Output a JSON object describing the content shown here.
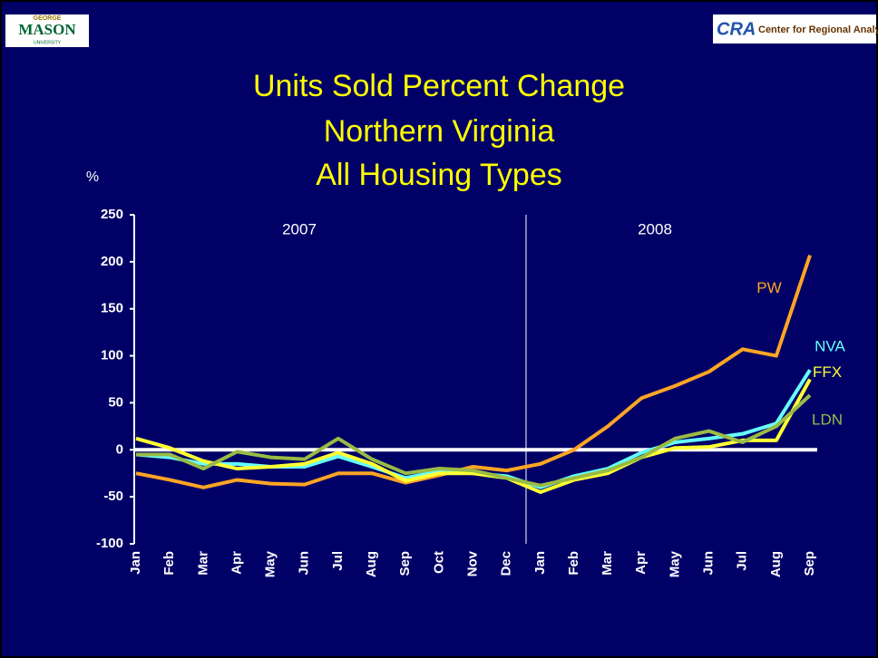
{
  "header": {
    "left_logo": [
      "GEORGE",
      "MASON",
      "UNIVERSITY"
    ],
    "right_logo": [
      "CRA",
      "Center for Regional Analysis"
    ]
  },
  "chart_data": {
    "type": "line",
    "title": [
      "Units Sold Percent Change",
      "Northern Virginia",
      "All Housing Types"
    ],
    "ylabel": "%",
    "annotations": [
      "2007",
      "2008"
    ],
    "categories": [
      "Jan",
      "Feb",
      "Mar",
      "Apr",
      "May",
      "Jun",
      "Jul",
      "Aug",
      "Sep",
      "Oct",
      "Nov",
      "Dec",
      "Jan",
      "Feb",
      "Mar",
      "Apr",
      "May",
      "Jun",
      "Jul",
      "Aug",
      "Sep"
    ],
    "ylim": [
      -100,
      250
    ],
    "yticks": [
      -100,
      -50,
      0,
      50,
      100,
      150,
      200,
      250
    ],
    "series": [
      {
        "name": "PW",
        "color": "#ffa524",
        "values": [
          -25,
          -32,
          -40,
          -32,
          -36,
          -37,
          -25,
          -25,
          -35,
          -27,
          -18,
          -22,
          -15,
          0,
          25,
          55,
          68,
          83,
          107,
          100,
          207
        ]
      },
      {
        "name": "NVA",
        "color": "#66ffff",
        "values": [
          -5,
          -8,
          -15,
          -15,
          -18,
          -18,
          -7,
          -18,
          -30,
          -23,
          -25,
          -28,
          -40,
          -28,
          -20,
          -3,
          8,
          12,
          17,
          28,
          85
        ]
      },
      {
        "name": "FFX",
        "color": "#ffff33",
        "values": [
          12,
          2,
          -12,
          -20,
          -18,
          -15,
          -3,
          -15,
          -33,
          -25,
          -25,
          -30,
          -45,
          -32,
          -25,
          -8,
          2,
          3,
          10,
          10,
          75
        ]
      },
      {
        "name": "LDN",
        "color": "#99bb44",
        "values": [
          -5,
          -5,
          -20,
          -2,
          -8,
          -10,
          12,
          -10,
          -25,
          -20,
          -22,
          -30,
          -38,
          -30,
          -22,
          -8,
          12,
          20,
          8,
          25,
          58
        ]
      }
    ]
  }
}
